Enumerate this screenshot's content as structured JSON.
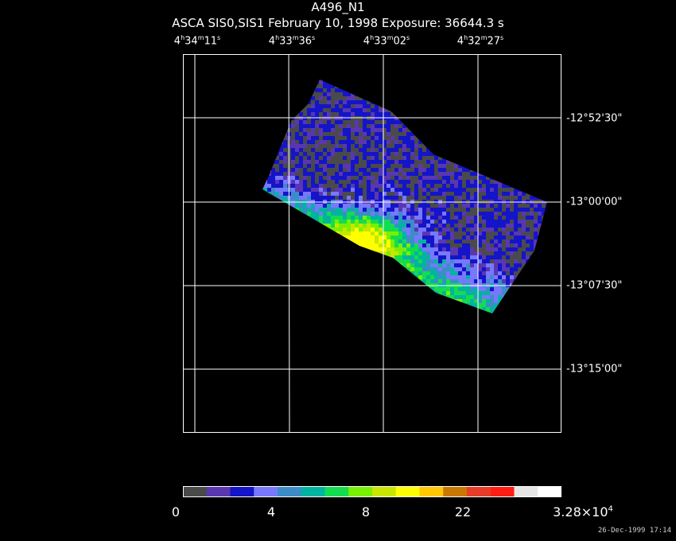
{
  "title": "A496_N1",
  "subtitle": "ASCA SIS0,SIS1 February 10, 1998 Exposure: 36644.3 s",
  "ra_labels": [
    {
      "h": "4",
      "m": "34",
      "s": "11"
    },
    {
      "h": "4",
      "m": "33",
      "s": "36"
    },
    {
      "h": "4",
      "m": "33",
      "s": "02"
    },
    {
      "h": "4",
      "m": "32",
      "s": "27"
    }
  ],
  "dec_labels": [
    "-12°52'30\"",
    "-13°00'00\"",
    "-13°07'30\"",
    "-13°15'00\""
  ],
  "colorbar": {
    "colors": [
      "#4a4a4a",
      "#5a37b0",
      "#1414c8",
      "#7878ff",
      "#3c8cc8",
      "#00b4a0",
      "#14dc50",
      "#78f000",
      "#c8e600",
      "#ffff00",
      "#ffc800",
      "#c87800",
      "#e63c28",
      "#ff1e14",
      "#e6e6e6",
      "#ffffff"
    ],
    "labels": [
      "0",
      "4",
      "8",
      "22"
    ],
    "max_label_base": "3.28×10",
    "max_label_exp": "4"
  },
  "timestamp": "26-Dec-1999 17:14"
}
